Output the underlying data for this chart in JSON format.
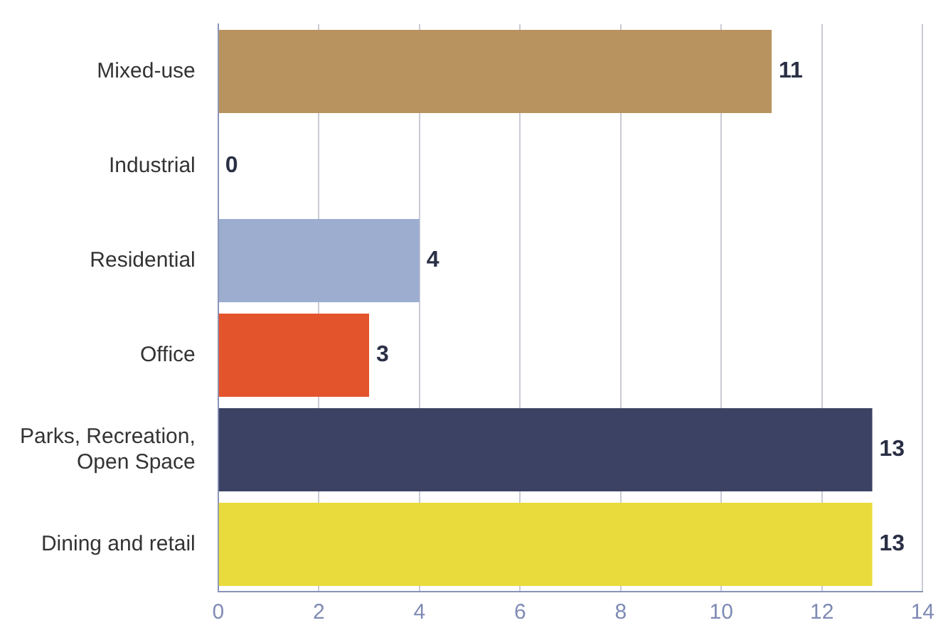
{
  "chart_data": {
    "type": "bar",
    "orientation": "horizontal",
    "categories": [
      "Mixed-use",
      "Industrial",
      "Residential",
      "Office",
      "Parks, Recreation, Open Space",
      "Dining and retail"
    ],
    "values": [
      11,
      0,
      4,
      3,
      13,
      13
    ],
    "colors": [
      "#b8935f",
      "#8c8c8c",
      "#9cadd0",
      "#e4542c",
      "#3c4263",
      "#e9db3c"
    ],
    "xlim": [
      0,
      14
    ],
    "xticks": [
      0,
      2,
      4,
      6,
      8,
      10,
      12,
      14
    ],
    "grid": "x",
    "legend": false,
    "data_labels": true
  }
}
